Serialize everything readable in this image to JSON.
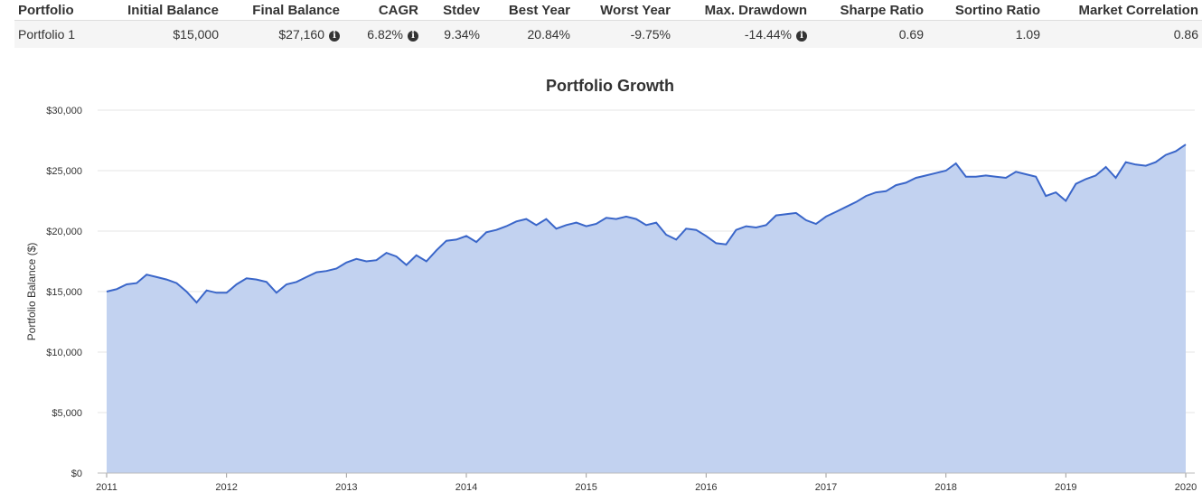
{
  "table": {
    "headers": [
      "Portfolio",
      "Initial Balance",
      "Final Balance",
      "CAGR",
      "Stdev",
      "Best Year",
      "Worst Year",
      "Max. Drawdown",
      "Sharpe Ratio",
      "Sortino Ratio",
      "Market Correlation"
    ],
    "row": {
      "portfolio": "Portfolio 1",
      "initial_balance": "$15,000",
      "final_balance": "$27,160",
      "cagr": "6.82%",
      "stdev": "9.34%",
      "best_year": "20.84%",
      "worst_year": "-9.75%",
      "max_drawdown": "-14.44%",
      "sharpe_ratio": "0.69",
      "sortino_ratio": "1.09",
      "market_correlation": "0.86"
    },
    "info_icon": "info-circle-icon"
  },
  "chart_data": {
    "type": "area",
    "title": "Portfolio Growth",
    "ylabel": "Portfolio Balance ($)",
    "xlabel": "",
    "ylim": [
      0,
      30000
    ],
    "xlim": [
      2011,
      2020
    ],
    "y_ticks": [
      "$0",
      "$5,000",
      "$10,000",
      "$15,000",
      "$20,000",
      "$25,000",
      "$30,000"
    ],
    "x_ticks": [
      "2011",
      "2012",
      "2013",
      "2014",
      "2015",
      "2016",
      "2017",
      "2018",
      "2019",
      "2020"
    ],
    "grid": "horizontal",
    "colors": {
      "line": "#3a66c9",
      "fill": "#c2d2f0",
      "grid": "#e6e6e6"
    },
    "series": [
      {
        "x": [
          "2011-01",
          "2011-02",
          "2011-03",
          "2011-04",
          "2011-05",
          "2011-06",
          "2011-07",
          "2011-08",
          "2011-09",
          "2011-10",
          "2011-11",
          "2011-12",
          "2012-01",
          "2012-02",
          "2012-03",
          "2012-04",
          "2012-05",
          "2012-06",
          "2012-07",
          "2012-08",
          "2012-09",
          "2012-10",
          "2012-11",
          "2012-12",
          "2013-01",
          "2013-02",
          "2013-03",
          "2013-04",
          "2013-05",
          "2013-06",
          "2013-07",
          "2013-08",
          "2013-09",
          "2013-10",
          "2013-11",
          "2013-12",
          "2014-01",
          "2014-02",
          "2014-03",
          "2014-04",
          "2014-05",
          "2014-06",
          "2014-07",
          "2014-08",
          "2014-09",
          "2014-10",
          "2014-11",
          "2014-12",
          "2015-01",
          "2015-02",
          "2015-03",
          "2015-04",
          "2015-05",
          "2015-06",
          "2015-07",
          "2015-08",
          "2015-09",
          "2015-10",
          "2015-11",
          "2015-12",
          "2016-01",
          "2016-02",
          "2016-03",
          "2016-04",
          "2016-05",
          "2016-06",
          "2016-07",
          "2016-08",
          "2016-09",
          "2016-10",
          "2016-11",
          "2016-12",
          "2017-01",
          "2017-02",
          "2017-03",
          "2017-04",
          "2017-05",
          "2017-06",
          "2017-07",
          "2017-08",
          "2017-09",
          "2017-10",
          "2017-11",
          "2017-12",
          "2018-01",
          "2018-02",
          "2018-03",
          "2018-04",
          "2018-05",
          "2018-06",
          "2018-07",
          "2018-08",
          "2018-09",
          "2018-10",
          "2018-11",
          "2018-12",
          "2019-01",
          "2019-02",
          "2019-03",
          "2019-04",
          "2019-05",
          "2019-06",
          "2019-07",
          "2019-08",
          "2019-09",
          "2019-10",
          "2019-11",
          "2019-12",
          "2020-01"
        ],
        "values": [
          15000,
          15200,
          15600,
          15700,
          16400,
          16200,
          16000,
          15700,
          15000,
          14100,
          15100,
          14900,
          14900,
          15600,
          16100,
          16000,
          15800,
          14900,
          15600,
          15800,
          16200,
          16600,
          16700,
          16900,
          17400,
          17700,
          17500,
          17600,
          18200,
          17900,
          17200,
          18000,
          17500,
          18400,
          19200,
          19300,
          19600,
          19100,
          19900,
          20100,
          20400,
          20800,
          21000,
          20500,
          21000,
          20200,
          20500,
          20700,
          20400,
          20600,
          21100,
          21000,
          21200,
          21000,
          20500,
          20700,
          19700,
          19300,
          20200,
          20100,
          19600,
          19000,
          18900,
          20100,
          20400,
          20300,
          20500,
          21300,
          21400,
          21500,
          20900,
          20600,
          21200,
          21600,
          22000,
          22400,
          22900,
          23200,
          23300,
          23800,
          24000,
          24400,
          24600,
          24800,
          25000,
          25600,
          24500,
          24500,
          24600,
          24500,
          24400,
          24900,
          24700,
          24500,
          22900,
          23200,
          22500,
          23900,
          24300,
          24600,
          25300,
          24400,
          25700,
          25500,
          25400,
          25700,
          26300,
          26600,
          27160
        ]
      }
    ]
  }
}
